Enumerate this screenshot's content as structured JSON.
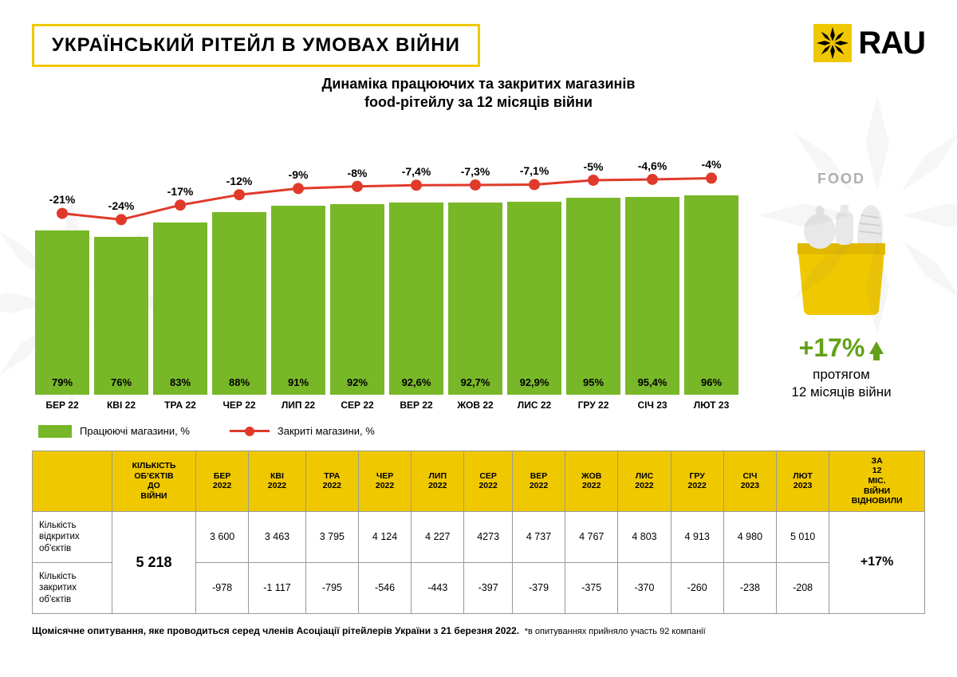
{
  "header": {
    "title": "УКРАЇНСЬКИЙ РІТЕЙЛ В УМОВАХ ВІЙНИ",
    "logo_text": "RAU"
  },
  "subtitle_line1": "Динаміка працюючих та закритих магазинів",
  "subtitle_line2": "food-рітейлу за 12 місяців війни",
  "chart": {
    "type": "bar+line",
    "bar_color": "#78b728",
    "line_color": "#e03a2a",
    "point_radius": 7,
    "line_width": 3,
    "max_bar_pct": 100,
    "categories": [
      "БЕР 22",
      "КВІ 22",
      "ТРА 22",
      "ЧЕР 22",
      "ЛИП 22",
      "СЕР 22",
      "ВЕР 22",
      "ЖОВ 22",
      "ЛИС 22",
      "ГРУ 22",
      "СІЧ 23",
      "ЛЮТ 23"
    ],
    "bar_values": [
      79,
      76,
      83,
      88,
      91,
      92,
      92.6,
      92.7,
      92.9,
      95,
      95.4,
      96
    ],
    "bar_labels": [
      "79%",
      "76%",
      "83%",
      "88%",
      "91%",
      "92%",
      "92,6%",
      "92,7%",
      "92,9%",
      "95%",
      "95,4%",
      "96%"
    ],
    "line_values": [
      -21,
      -24,
      -17,
      -12,
      -9,
      -8,
      -7.4,
      -7.3,
      -7.1,
      -5,
      -4.6,
      -4
    ],
    "line_labels": [
      "-21%",
      "-24%",
      "-17%",
      "-12%",
      "-9%",
      "-8%",
      "-7,4%",
      "-7,3%",
      "-7,1%",
      "-5%",
      "-4,6%",
      "-4%"
    ]
  },
  "legend": {
    "bar_label": "Працюючі магазини, %",
    "line_label": "Закриті магазини, %"
  },
  "side": {
    "title": "FOOD",
    "big_pct": "+17%",
    "sub_line1": "протягом",
    "sub_line2": "12 місяців війни",
    "icon_bag_color": "#f0c800",
    "icon_item_color": "#e8e8e8"
  },
  "table": {
    "header_bg": "#f0c800",
    "col_headers": [
      "",
      "КІЛЬКІСТЬ ОБ'ЄКТІВ ДО ВІЙНИ",
      "БЕР 2022",
      "КВІ 2022",
      "ТРА 2022",
      "ЧЕР 2022",
      "ЛИП 2022",
      "СЕР 2022",
      "ВЕР 2022",
      "ЖОВ 2022",
      "ЛИС 2022",
      "ГРУ 2022",
      "СІЧ 2023",
      "ЛЮТ 2023",
      "ЗА 12 МІС. ВІЙНИ ВІДНОВИЛИ"
    ],
    "prewar_value": "5 218",
    "recovery_value": "+17%",
    "row1_head": "Кількість відкритих об'єктів",
    "row1": [
      "3 600",
      "3 463",
      "3 795",
      "4 124",
      "4 227",
      "4273",
      "4 737",
      "4 767",
      "4 803",
      "4 913",
      "4 980",
      "5 010"
    ],
    "row2_head": "Кількість закритих об'єктів",
    "row2": [
      "-978",
      "-1 117",
      "-795",
      "-546",
      "-443",
      "-397",
      "-379",
      "-375",
      "-370",
      "-260",
      "-238",
      "-208"
    ]
  },
  "footnote": {
    "main": "Щомісячне опитування, яке проводиться серед членів Асоціації рітейлерів України з 21 березня 2022.",
    "small": "*в опитуваннях прийняло участь 92 компанії"
  },
  "colors": {
    "accent_yellow": "#f0c800",
    "green": "#78b728",
    "dark_green": "#63a017",
    "red": "#e03a2a",
    "grey": "#b0b0b0"
  }
}
